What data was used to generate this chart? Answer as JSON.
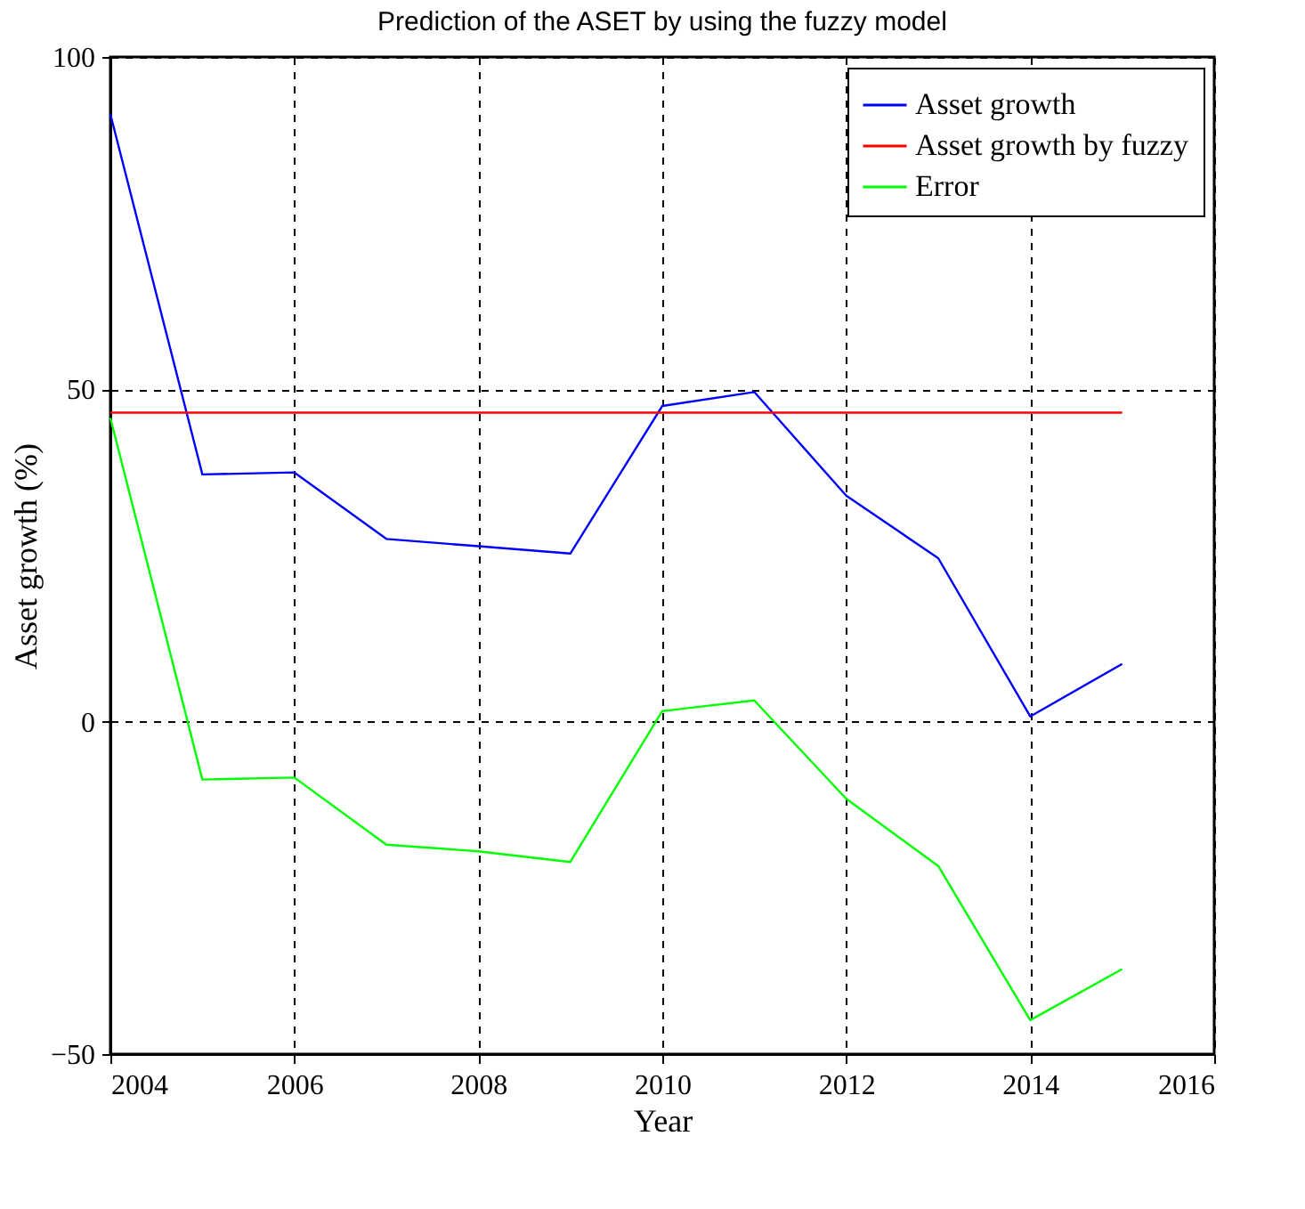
{
  "chart_data": {
    "type": "line",
    "title": "Prediction of the ASET by using the fuzzy model",
    "xlabel": "Year",
    "ylabel": "Asset growth (%)",
    "x": [
      2004,
      2005,
      2006,
      2007,
      2008,
      2009,
      2010,
      2011,
      2012,
      2013,
      2014,
      2015
    ],
    "series": [
      {
        "name": "Asset growth",
        "color": "#0000ff",
        "values": [
          91.4,
          37.2,
          37.5,
          27.5,
          26.4,
          25.3,
          47.5,
          49.6,
          34,
          24.6,
          0.8,
          8.7
        ]
      },
      {
        "name": "Asset growth by fuzzy",
        "color": "#ff0000",
        "values": [
          46.5,
          46.5,
          46.5,
          46.5,
          46.5,
          46.5,
          46.5,
          46.5,
          46.5,
          46.5,
          46.5,
          46.5
        ]
      },
      {
        "name": "Error",
        "color": "#00ff00",
        "values": [
          45.7,
          -8.7,
          -8.4,
          -18.5,
          -19.5,
          -21.1,
          1.6,
          3.2,
          -11.6,
          -21.7,
          -44.9,
          -37.2
        ]
      }
    ],
    "xlim": [
      2004,
      2016
    ],
    "xticks": [
      2004,
      2006,
      2008,
      2010,
      2012,
      2014,
      2016
    ],
    "ylim": [
      -50,
      100
    ],
    "yticks": [
      -50,
      0,
      50,
      100
    ],
    "grid": true,
    "legend": "top right",
    "marker": "none",
    "line_style": "solid"
  }
}
